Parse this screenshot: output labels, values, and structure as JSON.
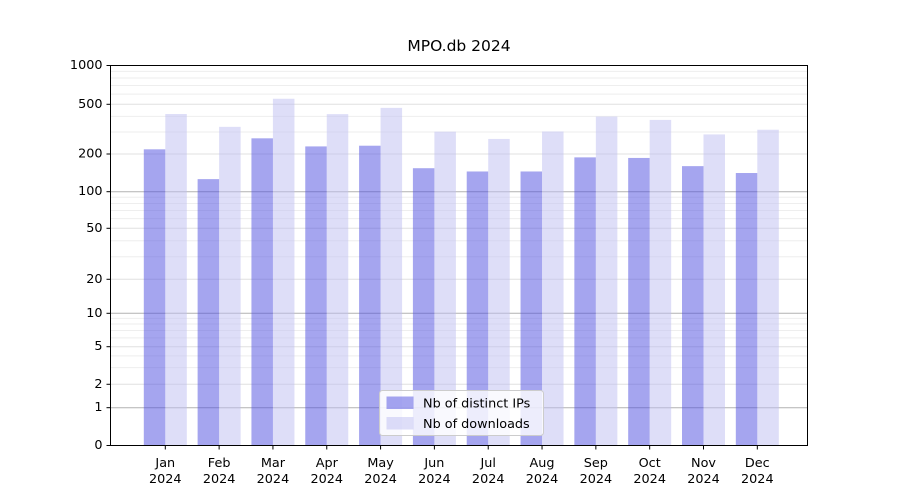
{
  "chart_data": {
    "type": "bar",
    "title": "MPO.db 2024",
    "categories": [
      "Jan",
      "Feb",
      "Mar",
      "Apr",
      "May",
      "Jun",
      "Jul",
      "Aug",
      "Sep",
      "Oct",
      "Nov",
      "Dec"
    ],
    "x_tick_second_line": "2024",
    "series": [
      {
        "name": "Nb of distinct IPs",
        "color": "#4b4bdf",
        "alpha": 0.5,
        "values": [
          218,
          126,
          267,
          230,
          233,
          154,
          145,
          145,
          188,
          186,
          160,
          141
        ]
      },
      {
        "name": "Nb of downloads",
        "color": "#bdbdf1",
        "alpha": 0.5,
        "values": [
          418,
          330,
          552,
          417,
          468,
          302,
          264,
          303,
          399,
          375,
          287,
          313
        ]
      }
    ],
    "yscale": "asinh-log",
    "ylim": [
      0,
      1000
    ],
    "y_ticks": [
      0,
      1,
      2,
      5,
      10,
      20,
      50,
      100,
      200,
      500,
      1000
    ],
    "grid": "on",
    "legend_position": "lower center"
  },
  "colors": {
    "background": "#ffffff",
    "axis": "#000000",
    "grid_major": "#b2b2b2",
    "grid_medium": "#e0e0e0",
    "grid_minor": "#eeeeee",
    "legend_box_fill": "#ffffff",
    "legend_box_border": "#cccccc"
  }
}
